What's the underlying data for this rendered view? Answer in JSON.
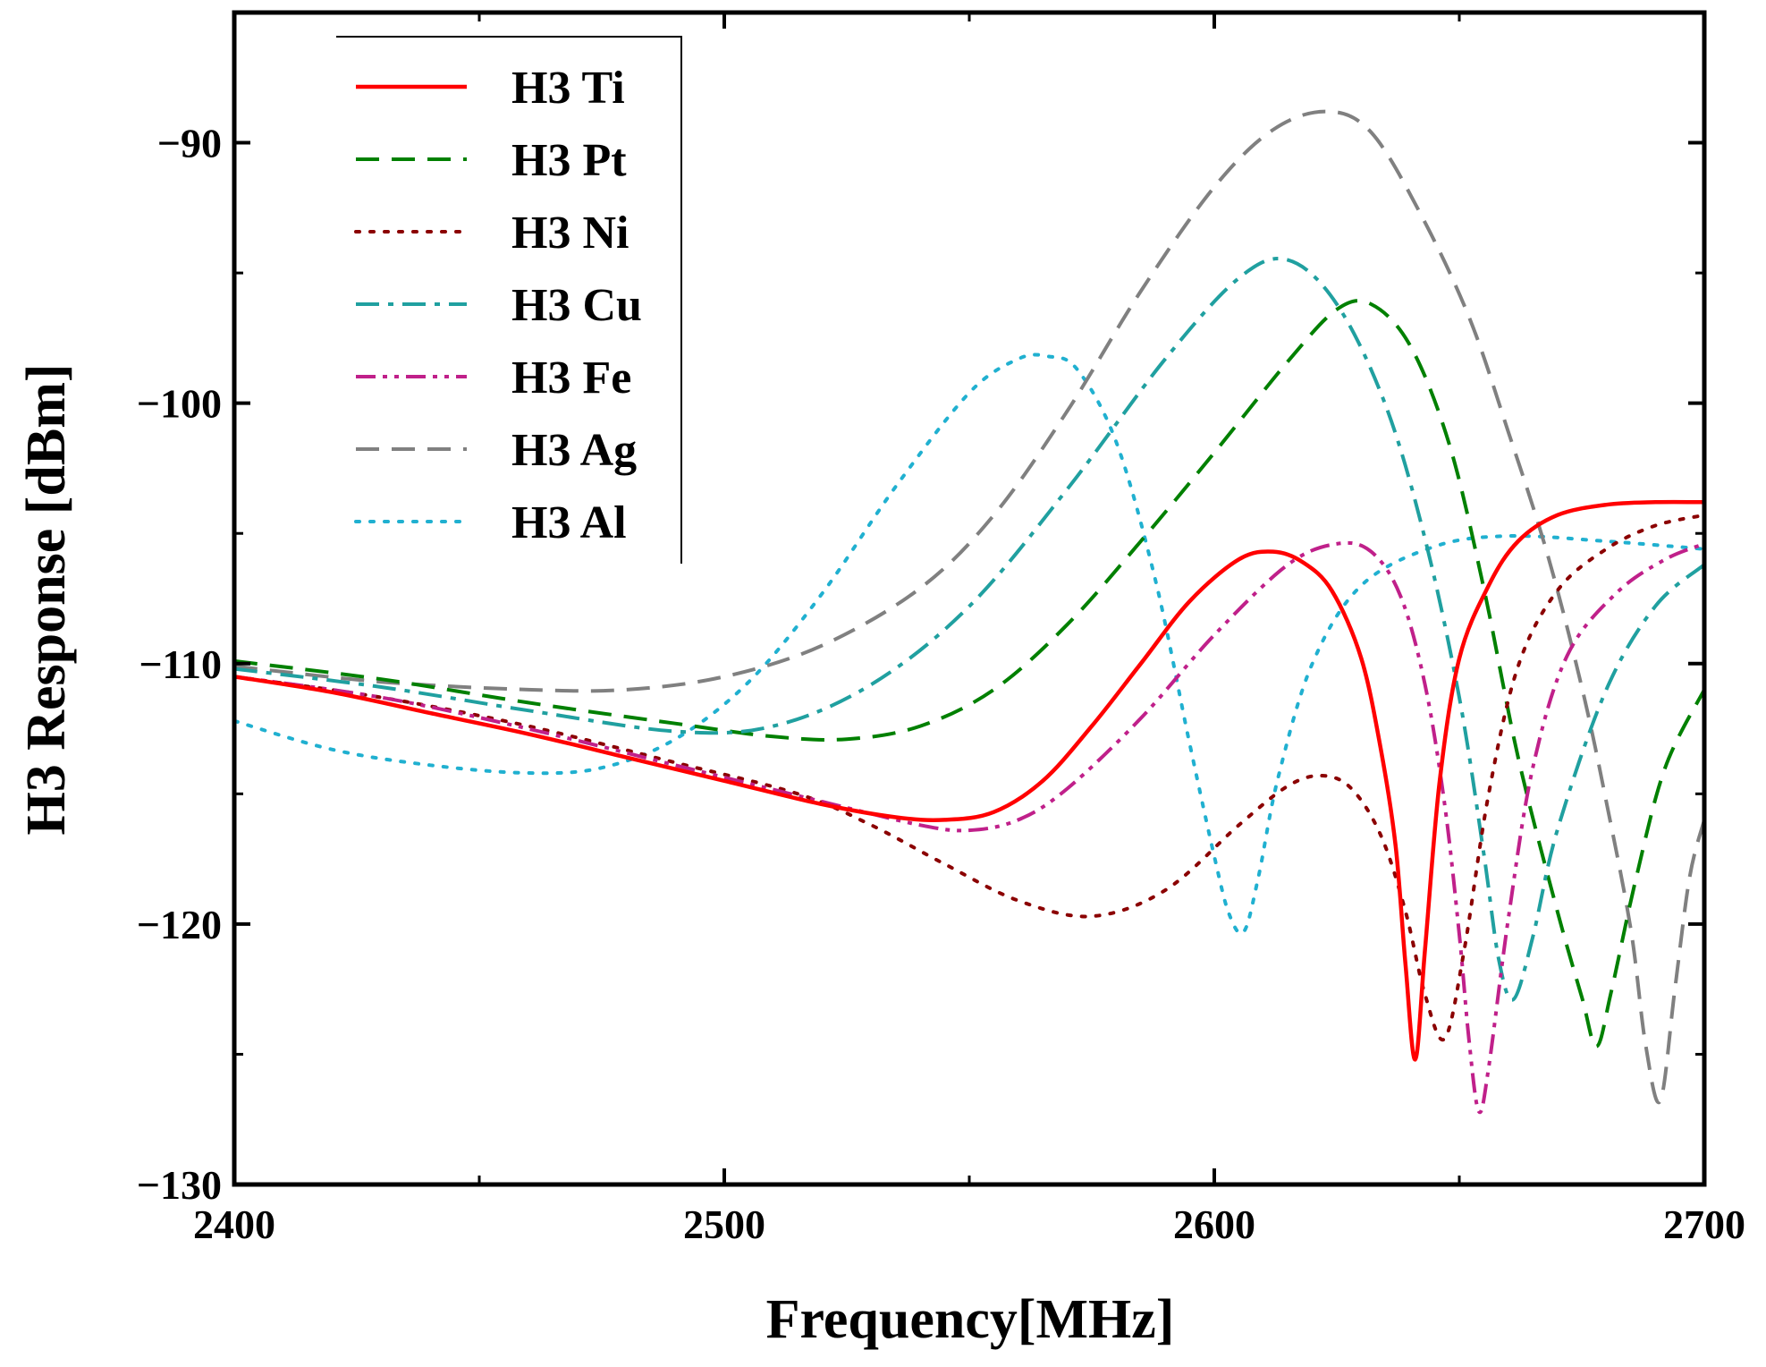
{
  "chart_data": {
    "type": "line",
    "title": "",
    "xlabel": "Frequency[MHz]",
    "ylabel": "H3 Response [dBm]",
    "xlim": [
      2400,
      2700
    ],
    "ylim": [
      -130,
      -85
    ],
    "xticks": [
      2400,
      2500,
      2600,
      2700
    ],
    "xtick_labels": [
      "2400",
      "2500",
      "2600",
      "2700"
    ],
    "yticks": [
      -130,
      -120,
      -110,
      -100,
      -90
    ],
    "ytick_labels": [
      "−130",
      "−120",
      "−110",
      "−100",
      "−90"
    ],
    "legend_position": "top-left",
    "grid": false,
    "series": [
      {
        "name": "H3 Ti",
        "color": "#ff0000",
        "style": "solid",
        "x": [
          2400,
          2420,
          2440,
          2460,
          2480,
          2500,
          2520,
          2535,
          2545,
          2555,
          2565,
          2575,
          2585,
          2595,
          2605,
          2612,
          2618,
          2624,
          2630,
          2634,
          2637,
          2639,
          2641,
          2643,
          2646,
          2650,
          2656,
          2662,
          2670,
          2680,
          2690,
          2700
        ],
        "y": [
          -110.5,
          -111.1,
          -111.9,
          -112.7,
          -113.6,
          -114.5,
          -115.4,
          -115.9,
          -116.0,
          -115.7,
          -114.5,
          -112.4,
          -110.0,
          -107.6,
          -106.0,
          -105.7,
          -106.1,
          -107.2,
          -109.8,
          -113.3,
          -117.0,
          -121.5,
          -125.2,
          -121.0,
          -114.5,
          -109.8,
          -107.0,
          -105.3,
          -104.3,
          -103.9,
          -103.8,
          -103.8
        ]
      },
      {
        "name": "H3 Pt",
        "color": "#008000",
        "style": "dashed",
        "x": [
          2400,
          2430,
          2460,
          2490,
          2510,
          2525,
          2540,
          2555,
          2570,
          2585,
          2600,
          2615,
          2625,
          2632,
          2640,
          2648,
          2655,
          2662,
          2670,
          2675,
          2678,
          2681,
          2686,
          2692,
          2700
        ],
        "y": [
          -109.9,
          -110.6,
          -111.5,
          -112.3,
          -112.8,
          -112.9,
          -112.4,
          -111.0,
          -108.5,
          -105.3,
          -101.9,
          -98.4,
          -96.4,
          -96.2,
          -97.8,
          -101.6,
          -107.1,
          -113.6,
          -119.5,
          -122.8,
          -124.7,
          -122.6,
          -118.3,
          -114.0,
          -111.0
        ]
      },
      {
        "name": "H3 Ni",
        "color": "#8b0000",
        "style": "dotted",
        "x": [
          2400,
          2430,
          2460,
          2490,
          2515,
          2530,
          2545,
          2560,
          2575,
          2590,
          2605,
          2615,
          2622,
          2628,
          2634,
          2639,
          2643,
          2647,
          2651,
          2656,
          2662,
          2670,
          2680,
          2690,
          2700
        ],
        "y": [
          -110.5,
          -111.3,
          -112.4,
          -113.8,
          -115.0,
          -116.2,
          -117.7,
          -119.1,
          -119.7,
          -118.7,
          -116.2,
          -114.7,
          -114.3,
          -114.8,
          -116.6,
          -119.5,
          -122.7,
          -124.4,
          -121.0,
          -115.0,
          -110.1,
          -107.2,
          -105.6,
          -104.7,
          -104.3
        ]
      },
      {
        "name": "H3 Cu",
        "color": "#20a0a0",
        "style": "dashdot",
        "x": [
          2400,
          2430,
          2460,
          2490,
          2510,
          2530,
          2550,
          2570,
          2590,
          2605,
          2615,
          2625,
          2635,
          2643,
          2650,
          2655,
          2658,
          2661,
          2665,
          2670,
          2680,
          2690,
          2700
        ],
        "y": [
          -110.2,
          -110.9,
          -111.8,
          -112.6,
          -112.4,
          -110.8,
          -107.8,
          -103.3,
          -98.3,
          -95.2,
          -94.5,
          -96.2,
          -100.1,
          -105.2,
          -111.3,
          -117.3,
          -121.3,
          -122.9,
          -120.5,
          -116.4,
          -111.0,
          -107.8,
          -106.2
        ]
      },
      {
        "name": "H3 Fe",
        "color": "#c0208a",
        "style": "dashdotdot",
        "x": [
          2400,
          2430,
          2460,
          2490,
          2520,
          2540,
          2550,
          2560,
          2570,
          2585,
          2600,
          2615,
          2625,
          2632,
          2638,
          2643,
          2647,
          2650,
          2652,
          2654,
          2656,
          2660,
          2665,
          2672,
          2682,
          2692,
          2700
        ],
        "y": [
          -110.5,
          -111.3,
          -112.5,
          -113.9,
          -115.3,
          -116.2,
          -116.4,
          -116.0,
          -114.8,
          -112.1,
          -108.9,
          -106.2,
          -105.4,
          -105.7,
          -107.4,
          -110.8,
          -115.4,
          -120.4,
          -124.5,
          -127.2,
          -125.5,
          -119.8,
          -114.0,
          -109.7,
          -107.3,
          -106.0,
          -105.4
        ]
      },
      {
        "name": "H3 Ag",
        "color": "#808080",
        "style": "dashed",
        "x": [
          2400,
          2430,
          2460,
          2480,
          2500,
          2520,
          2540,
          2555,
          2570,
          2585,
          2600,
          2612,
          2623,
          2632,
          2642,
          2652,
          2660,
          2668,
          2675,
          2680,
          2685,
          2688,
          2691,
          2694,
          2697,
          2700
        ],
        "y": [
          -110.1,
          -110.7,
          -111.0,
          -111.0,
          -110.5,
          -109.3,
          -107.1,
          -104.3,
          -100.3,
          -95.7,
          -91.7,
          -89.5,
          -88.8,
          -89.6,
          -92.7,
          -96.7,
          -101.1,
          -105.8,
          -110.9,
          -115.3,
          -120.2,
          -124.6,
          -126.8,
          -122.5,
          -118.2,
          -116.0
        ]
      },
      {
        "name": "H3 Al",
        "color": "#20b0d0",
        "style": "dotted",
        "x": [
          2400,
          2420,
          2440,
          2460,
          2475,
          2490,
          2505,
          2520,
          2535,
          2550,
          2560,
          2566,
          2572,
          2580,
          2588,
          2595,
          2600,
          2603,
          2606,
          2609,
          2613,
          2620,
          2630,
          2645,
          2660,
          2680,
          2700
        ],
        "y": [
          -112.2,
          -113.3,
          -113.9,
          -114.2,
          -114.0,
          -112.9,
          -110.7,
          -107.3,
          -103.2,
          -99.6,
          -98.3,
          -98.2,
          -98.7,
          -101.5,
          -106.8,
          -113.1,
          -117.4,
          -119.6,
          -120.3,
          -118.2,
          -114.4,
          -110.0,
          -107.0,
          -105.5,
          -105.1,
          -105.3,
          -105.6
        ]
      }
    ]
  },
  "legend": {
    "items": [
      {
        "label": "H3 Ti"
      },
      {
        "label": "H3 Pt"
      },
      {
        "label": "H3 Ni"
      },
      {
        "label": "H3 Cu"
      },
      {
        "label": "H3 Fe"
      },
      {
        "label": "H3 Ag"
      },
      {
        "label": "H3 Al"
      }
    ]
  }
}
